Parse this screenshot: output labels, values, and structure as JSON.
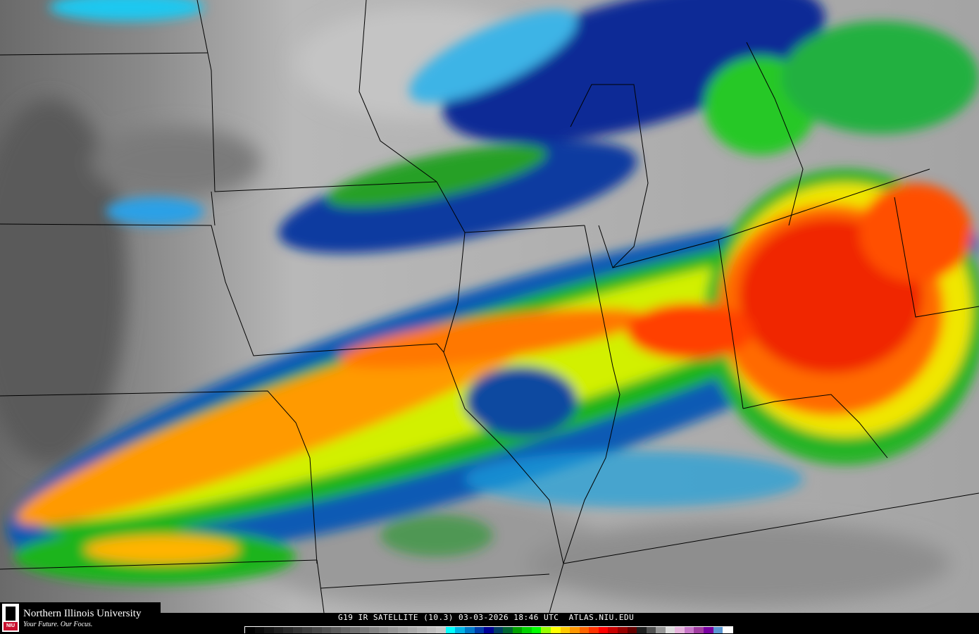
{
  "caption": "G19 IR SATELLITE (10.3) 03-03-2026 18:46 UTC  ATLAS.NIU.EDU",
  "logo": {
    "name": "Northern Illinois University",
    "tagline": "Your Future. Our Focus.",
    "seal_text": "NIU",
    "brand_color": "#c8102e"
  },
  "colorbar": {
    "colors": [
      "#000000",
      "#0a0a0a",
      "#141414",
      "#1e1e1e",
      "#282828",
      "#323232",
      "#3c3c3c",
      "#464646",
      "#505050",
      "#5a5a5a",
      "#646464",
      "#6e6e6e",
      "#787878",
      "#828282",
      "#8c8c8c",
      "#969696",
      "#a0a0a0",
      "#aaaaaa",
      "#b4b4b4",
      "#bebebe",
      "#c8c8c8",
      "#00ffff",
      "#00b4e6",
      "#0078c8",
      "#003caa",
      "#000096",
      "#003c64",
      "#006432",
      "#00a000",
      "#00d200",
      "#00ff00",
      "#96ff00",
      "#ffff00",
      "#ffc800",
      "#ff9600",
      "#ff6400",
      "#ff3200",
      "#ff0000",
      "#c80000",
      "#960000",
      "#640000",
      "#1e1e1e",
      "#505050",
      "#969696",
      "#dcdcdc",
      "#e6b4dc",
      "#c878c8",
      "#a03ca0",
      "#7800a0",
      "#5a96d2",
      "#ffffff"
    ]
  }
}
